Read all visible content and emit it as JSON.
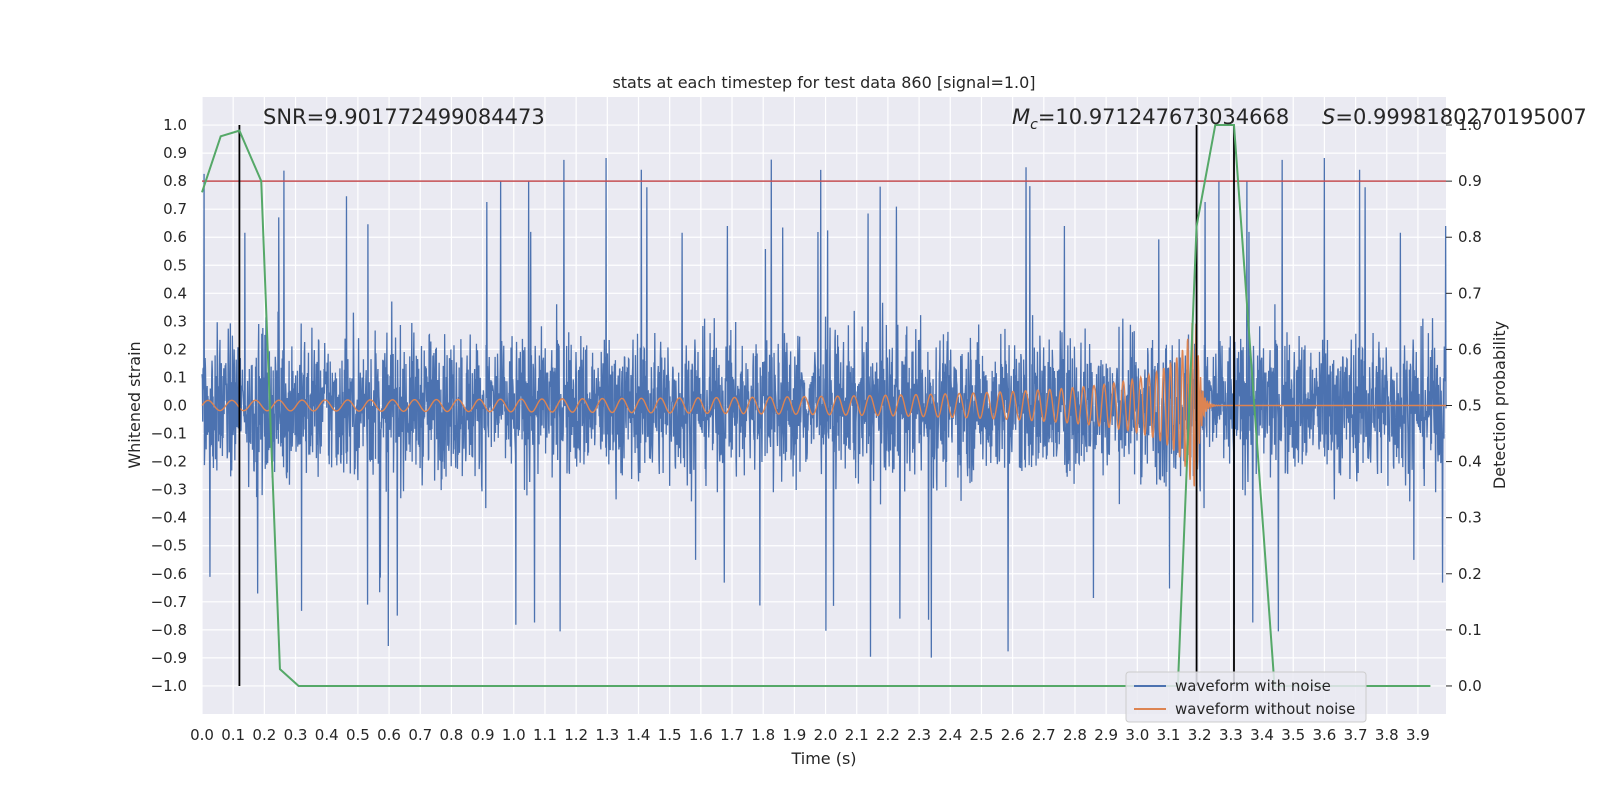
{
  "chart_data": {
    "type": "line",
    "title": "stats at each timestep for test data 860 [signal=1.0]",
    "xlabel": "Time (s)",
    "ylabel": "Whitened strain",
    "y2label": "Detection probability",
    "xlim": [
      0.0,
      3.99
    ],
    "ylim": [
      -1.1,
      1.1
    ],
    "y2lim": [
      -0.05,
      1.05
    ],
    "grid": true,
    "x_ticks": [
      "0.0",
      "0.1",
      "0.2",
      "0.3",
      "0.4",
      "0.5",
      "0.6",
      "0.7",
      "0.8",
      "0.9",
      "1.0",
      "1.1",
      "1.2",
      "1.3",
      "1.4",
      "1.5",
      "1.6",
      "1.7",
      "1.8",
      "1.9",
      "2.0",
      "2.1",
      "2.2",
      "2.3",
      "2.4",
      "2.5",
      "2.6",
      "2.7",
      "2.8",
      "2.9",
      "3.0",
      "3.1",
      "3.2",
      "3.3",
      "3.4",
      "3.5",
      "3.6",
      "3.7",
      "3.8",
      "3.9"
    ],
    "y_ticks": [
      "1.0",
      "0.9",
      "0.8",
      "0.7",
      "0.6",
      "0.5",
      "0.4",
      "0.3",
      "0.2",
      "0.1",
      "0.0",
      "−0.1",
      "−0.2",
      "−0.3",
      "−0.4",
      "−0.5",
      "−0.6",
      "−0.7",
      "−0.8",
      "−0.9",
      "−1.0"
    ],
    "y2_ticks": [
      "1.0",
      "0.9",
      "0.8",
      "0.7",
      "0.6",
      "0.5",
      "0.4",
      "0.3",
      "0.2",
      "0.1",
      "0.0"
    ],
    "annotations": {
      "snr": "SNR=9.901772499084473",
      "mc_symbol": "M",
      "mc_sub": "c",
      "mc_value": "=10.971247673034668",
      "s_symbol": "S",
      "s_value": "=0.9998180270195007"
    },
    "threshold": {
      "axis": "right",
      "value": 0.9,
      "color": "#c44e52"
    },
    "vertical_lines": [
      0.12,
      3.19,
      3.31
    ],
    "legend": {
      "placement": "lower-right",
      "entries": [
        {
          "label": "waveform with noise",
          "color": "#4c72b0"
        },
        {
          "label": "waveform without noise",
          "color": "#dd8452"
        }
      ]
    },
    "series": [
      {
        "name": "waveform with noise",
        "axis": "left",
        "color": "#4c72b0",
        "kind": "noise",
        "amplitude_range": [
          -1.0,
          1.0
        ]
      },
      {
        "name": "waveform without noise",
        "axis": "left",
        "color": "#dd8452",
        "kind": "chirp",
        "merger_time": 3.19,
        "peak_amplitude": 0.3
      },
      {
        "name": "",
        "axis": "right",
        "color": "#55a868",
        "x": [
          0.0,
          0.06,
          0.12,
          0.19,
          0.25,
          0.31,
          0.5,
          1.0,
          1.5,
          2.0,
          2.5,
          3.0,
          3.13,
          3.19,
          3.25,
          3.31,
          3.37,
          3.44,
          3.5,
          3.7,
          3.94
        ],
        "y": [
          0.88,
          0.98,
          0.99,
          0.9,
          0.03,
          0.0,
          0.0,
          0.0,
          0.0,
          0.0,
          0.0,
          0.0,
          0.0,
          0.82,
          1.0,
          1.0,
          0.54,
          0.0,
          0.0,
          0.0,
          0.0
        ]
      }
    ]
  }
}
